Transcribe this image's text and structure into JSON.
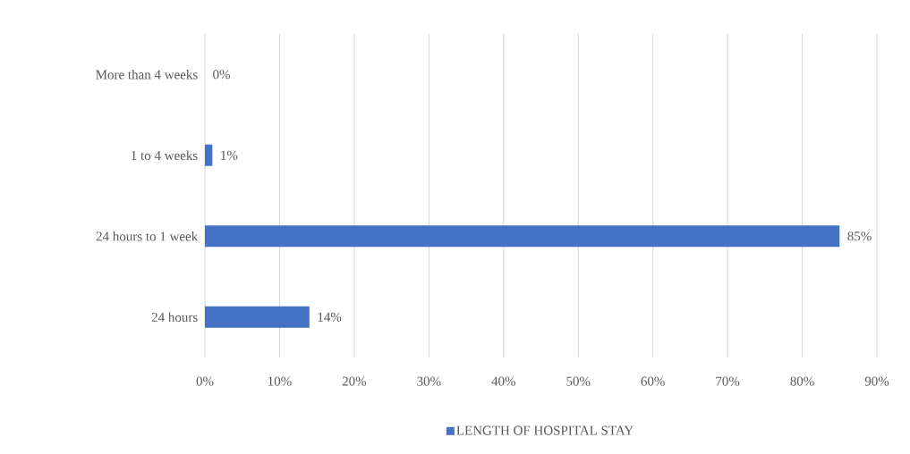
{
  "chart_data": {
    "type": "bar",
    "orientation": "horizontal",
    "categories": [
      "More than 4 weeks",
      "1 to 4 weeks",
      "24 hours to 1 week",
      "24 hours"
    ],
    "series": [
      {
        "name": "LENGTH OF HOSPITAL STAY",
        "color": "#4472c4",
        "values": [
          0,
          1,
          85,
          14
        ],
        "value_labels": [
          "0%",
          "1%",
          "85%",
          "14%"
        ]
      }
    ],
    "xlim": [
      0,
      90
    ],
    "xticks": [
      {
        "value": 0,
        "label": "0%"
      },
      {
        "value": 10,
        "label": "10%"
      },
      {
        "value": 20,
        "label": "20%"
      },
      {
        "value": 30,
        "label": "30%"
      },
      {
        "value": 40,
        "label": "40%"
      },
      {
        "value": 50,
        "label": "50%"
      },
      {
        "value": 60,
        "label": "60%"
      },
      {
        "value": 70,
        "label": "70%"
      },
      {
        "value": 80,
        "label": "80%"
      },
      {
        "value": 90,
        "label": "90%"
      }
    ],
    "grid": "x",
    "legend": "bottom"
  }
}
